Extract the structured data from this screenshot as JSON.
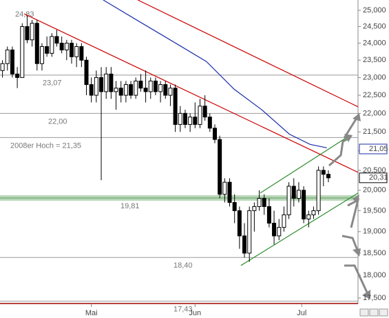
{
  "chart_data": {
    "type": "candlestick",
    "log_scale": true,
    "ylim": [
      17.38,
      25.32
    ],
    "yticks": [
      {
        "value": 25,
        "label": "25,000"
      },
      {
        "value": 24.5,
        "label": "24,500"
      },
      {
        "value": 24,
        "label": "24,000"
      },
      {
        "value": 23.5,
        "label": "23,500"
      },
      {
        "value": 23,
        "label": "23,000"
      },
      {
        "value": 22.5,
        "label": "22,500"
      },
      {
        "value": 22,
        "label": "22,000"
      },
      {
        "value": 21.5,
        "label": "21,500"
      },
      {
        "value": 21,
        "label": "21,000"
      },
      {
        "value": 20.5,
        "label": "20,500"
      },
      {
        "value": 20,
        "label": "20,000"
      },
      {
        "value": 19.5,
        "label": "19,500"
      },
      {
        "value": 19,
        "label": "19,000"
      },
      {
        "value": 18.5,
        "label": "18,500"
      },
      {
        "value": 18,
        "label": "18,000"
      },
      {
        "value": 17.5,
        "label": "17,500"
      }
    ],
    "xlim": [
      -0.5,
      72
    ],
    "xticks": [
      {
        "value": 18,
        "label": "Mai"
      },
      {
        "value": 39,
        "label": "Jun"
      },
      {
        "value": 60.6,
        "label": "Jul"
      }
    ],
    "open": [
      23.2,
      23.4,
      23.8,
      23.1,
      23.0,
      24.5,
      24.1,
      24.6,
      23.4,
      23.9,
      23.7,
      24.2,
      24.0,
      23.8,
      24.0,
      23.6,
      23.9,
      23.5,
      22.8,
      22.5,
      23.0,
      22.6,
      23.1,
      22.6,
      22.7,
      22.5,
      22.8,
      22.5,
      22.9,
      22.7,
      22.6,
      22.9,
      22.6,
      22.8,
      22.5,
      22.7,
      21.7,
      22.0,
      21.7,
      21.9,
      21.7,
      22.2,
      21.9,
      21.6,
      21.3,
      19.9,
      20.2,
      19.7,
      19.5,
      18.9,
      18.5,
      19.5,
      19.6,
      19.8,
      19.6,
      19.2,
      18.9,
      19.1,
      19.4,
      20.1,
      19.8,
      20.0,
      19.3,
      19.4,
      19.5,
      20.5,
      20.4
    ],
    "high": [
      23.5,
      23.9,
      23.9,
      23.3,
      24.6,
      24.83,
      24.7,
      24.7,
      24.0,
      24.2,
      24.3,
      24.4,
      24.2,
      24.1,
      24.1,
      24.0,
      24.0,
      23.6,
      23.0,
      23.2,
      23.3,
      23.3,
      23.3,
      22.9,
      22.9,
      22.9,
      22.9,
      23.0,
      23.1,
      23.2,
      23.0,
      23.0,
      22.9,
      22.9,
      22.8,
      22.8,
      22.2,
      22.1,
      22.0,
      22.3,
      22.4,
      22.5,
      22.0,
      21.7,
      21.4,
      20.3,
      20.3,
      19.9,
      19.6,
      19.2,
      19.6,
      19.7,
      20.0,
      19.9,
      19.8,
      19.5,
      19.3,
      19.6,
      20.2,
      20.3,
      20.2,
      20.1,
      19.5,
      19.6,
      20.6,
      20.6,
      20.5
    ],
    "low": [
      23.0,
      23.2,
      23.0,
      22.7,
      23.0,
      24.0,
      23.9,
      23.2,
      23.2,
      23.6,
      23.6,
      23.9,
      23.7,
      23.5,
      23.4,
      23.3,
      23.3,
      22.5,
      22.3,
      22.3,
      20.25,
      22.4,
      22.4,
      22.1,
      22.3,
      22.3,
      22.4,
      22.4,
      22.6,
      22.3,
      22.4,
      22.5,
      22.3,
      22.4,
      22.2,
      21.5,
      21.5,
      21.6,
      21.5,
      21.6,
      21.6,
      21.8,
      21.5,
      21.2,
      19.8,
      19.7,
      19.6,
      19.2,
      18.6,
      18.4,
      18.3,
      19.0,
      19.5,
      19.4,
      19.1,
      18.7,
      18.8,
      19.0,
      19.3,
      19.6,
      19.7,
      19.2,
      19.1,
      19.3,
      19.4,
      20.1,
      20.2
    ],
    "close": [
      23.4,
      23.8,
      23.1,
      23.0,
      24.5,
      24.1,
      24.6,
      23.4,
      23.9,
      23.7,
      24.2,
      24.0,
      23.8,
      24.0,
      23.6,
      23.9,
      23.5,
      22.8,
      22.5,
      23.0,
      22.6,
      23.1,
      22.6,
      22.7,
      22.5,
      22.8,
      22.5,
      22.9,
      22.7,
      22.6,
      22.9,
      22.6,
      22.8,
      22.5,
      22.7,
      21.7,
      22.0,
      21.7,
      21.9,
      21.7,
      22.2,
      21.9,
      21.6,
      21.3,
      19.9,
      20.2,
      19.7,
      19.5,
      18.9,
      18.5,
      19.5,
      19.6,
      19.8,
      19.6,
      19.2,
      18.9,
      19.1,
      19.4,
      20.1,
      19.8,
      20.0,
      19.3,
      19.4,
      19.5,
      20.5,
      20.4,
      20.31
    ],
    "colors": {
      "up": "#ffffff",
      "down": "#000000",
      "outline": "#000000"
    },
    "overlays": [
      {
        "color": "#cc0000",
        "x": [
          27.4,
          72
        ],
        "y": [
          25.32,
          22.18
        ]
      },
      {
        "color": "#cc0000",
        "x": [
          4.4,
          72
        ],
        "y": [
          24.89,
          20.45
        ]
      },
      {
        "color": "#1a2ea8",
        "x": [
          20.4,
          27.4,
          34.4,
          41.3,
          46.9,
          52.5,
          58.1,
          62.3,
          65.7
        ],
        "y": [
          25.32,
          24.68,
          24.06,
          23.46,
          22.67,
          22.1,
          21.44,
          21.17,
          21.08
        ]
      },
      {
        "color": "#2a8a2a",
        "x": [
          52.2,
          69.9
        ],
        "y": [
          19.93,
          21.37
        ]
      },
      {
        "color": "#2a8a2a",
        "x": [
          48.3,
          72
        ],
        "y": [
          18.22,
          19.93
        ]
      }
    ],
    "peak_label": {
      "value": 24.83,
      "label": "24,83"
    },
    "levels": [
      {
        "value": 23.07,
        "label": "23,07"
      },
      {
        "value": 22.0,
        "label": "22,00"
      },
      {
        "value": 21.35,
        "label": "2008er Hoch  =  21,35"
      },
      {
        "value": 19.81,
        "label": "19,81",
        "style": "band"
      },
      {
        "value": 18.4,
        "label": "18,40"
      },
      {
        "value": 17.43,
        "label": "17,43"
      }
    ],
    "price_tags": [
      {
        "value": 21.05,
        "label": "21,05",
        "color": "#1a2ea8"
      },
      {
        "value": 20.31,
        "label": "20,31",
        "color": "#000000"
      }
    ]
  }
}
